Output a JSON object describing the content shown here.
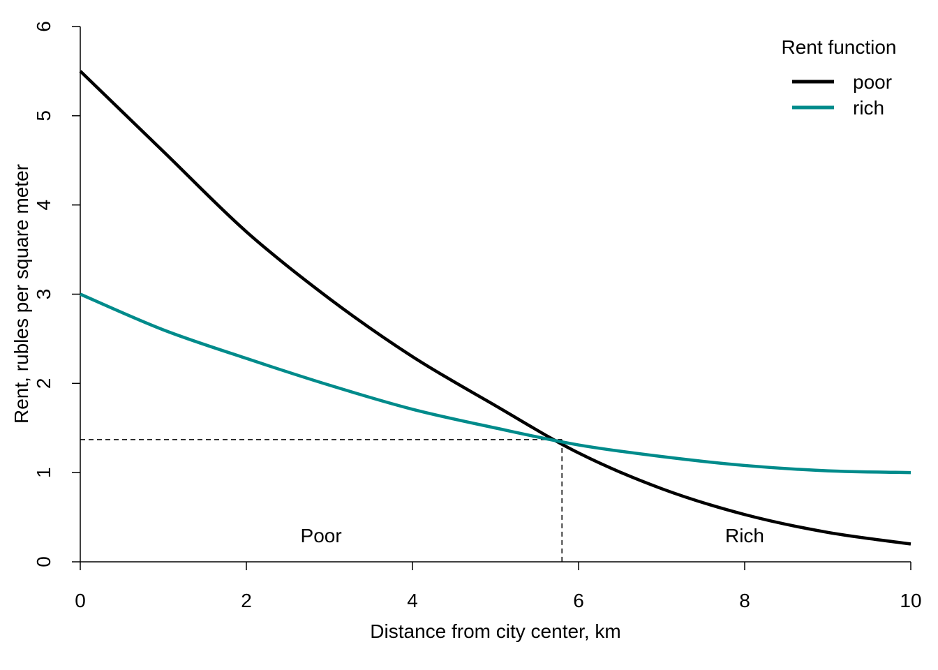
{
  "chart_data": {
    "type": "line",
    "title": "",
    "xlabel": "Distance from city center, km",
    "ylabel": "Rent, rubles per square meter",
    "xlim": [
      0,
      10
    ],
    "ylim": [
      0,
      6
    ],
    "xticks": [
      "0",
      "2",
      "4",
      "6",
      "8",
      "10"
    ],
    "yticks": [
      "0",
      "1",
      "2",
      "3",
      "4",
      "5",
      "6"
    ],
    "grid": false,
    "legend": {
      "title": "Rent function",
      "placement": "top-right",
      "entries": [
        "poor",
        "rich"
      ]
    },
    "series": [
      {
        "name": "poor",
        "color": "#000000",
        "x": [
          0,
          1,
          2,
          3,
          4,
          5,
          6,
          7,
          8,
          9,
          10
        ],
        "y": [
          5.5,
          4.6,
          3.7,
          2.95,
          2.3,
          1.75,
          1.22,
          0.82,
          0.53,
          0.33,
          0.2
        ]
      },
      {
        "name": "rich",
        "color": "#008B8B",
        "x": [
          0,
          1,
          2,
          3,
          4,
          5,
          6,
          7,
          8,
          9,
          10
        ],
        "y": [
          3.0,
          2.6,
          2.28,
          1.98,
          1.71,
          1.5,
          1.31,
          1.18,
          1.08,
          1.02,
          1.0
        ]
      }
    ],
    "intersection": {
      "x": 5.8,
      "y": 1.37
    },
    "annotations": [
      {
        "text": "Poor",
        "x": 2.9,
        "y": 0.22
      },
      {
        "text": "Rich",
        "x": 8.0,
        "y": 0.22
      }
    ]
  }
}
